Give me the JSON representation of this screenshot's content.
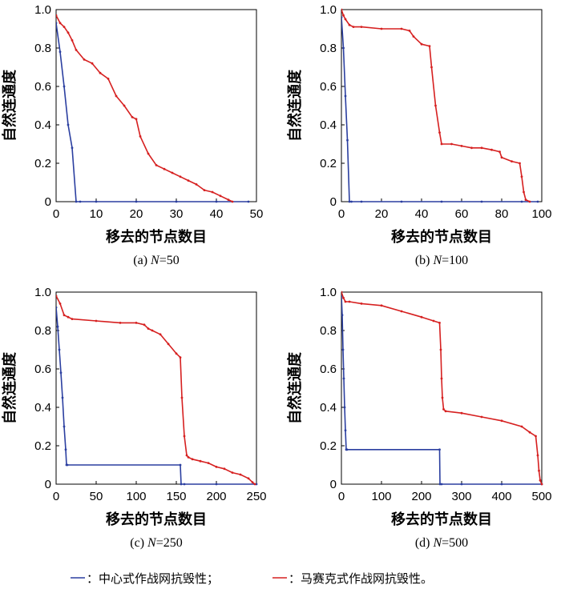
{
  "legend": {
    "centralized": {
      "label": "：中心式作战网抗毁性；",
      "color": "#2b3fa0"
    },
    "mosaic": {
      "label": "：马赛克式作战网抗毁性。",
      "color": "#d62020"
    }
  },
  "chart_data": [
    {
      "type": "line",
      "caption_prefix": "(a) ",
      "caption_var": "N",
      "caption_value": "=50",
      "xlabel": "移去的节点数目",
      "ylabel": "自然连通度",
      "xlim": [
        0,
        50
      ],
      "ylim": [
        0,
        1.0
      ],
      "xticks": [
        "0",
        "10",
        "20",
        "30",
        "40",
        "50"
      ],
      "yticks": [
        "0",
        "0.2",
        "0.4",
        "0.6",
        "0.8",
        "1.0"
      ],
      "series": [
        {
          "key": "centralized",
          "x": [
            0,
            1,
            2,
            3,
            4,
            5,
            6,
            10,
            20,
            30,
            40,
            48
          ],
          "y": [
            0.93,
            0.78,
            0.6,
            0.4,
            0.28,
            0.0,
            0.0,
            0.0,
            0.0,
            0.0,
            0.0,
            0.0
          ]
        },
        {
          "key": "mosaic",
          "x": [
            0,
            1,
            2,
            3,
            4,
            5,
            7,
            9,
            11,
            13,
            15,
            17,
            19,
            20,
            21,
            23,
            25,
            27,
            29,
            31,
            33,
            35,
            37,
            39,
            41,
            43,
            44
          ],
          "y": [
            0.97,
            0.93,
            0.91,
            0.88,
            0.84,
            0.79,
            0.74,
            0.72,
            0.67,
            0.64,
            0.55,
            0.5,
            0.44,
            0.43,
            0.34,
            0.25,
            0.19,
            0.17,
            0.15,
            0.13,
            0.11,
            0.09,
            0.06,
            0.05,
            0.03,
            0.01,
            0.0
          ]
        }
      ]
    },
    {
      "type": "line",
      "caption_prefix": "(b) ",
      "caption_var": "N",
      "caption_value": "=100",
      "xlabel": "移去的节点数目",
      "ylabel": "自然连通度",
      "xlim": [
        0,
        100
      ],
      "ylim": [
        0,
        1.0
      ],
      "xticks": [
        "0",
        "20",
        "40",
        "60",
        "80",
        "100"
      ],
      "yticks": [
        "0",
        "0.2",
        "0.4",
        "0.6",
        "0.8",
        "1.0"
      ],
      "series": [
        {
          "key": "centralized",
          "x": [
            0,
            1,
            2,
            3,
            4,
            5,
            10,
            30,
            50,
            70,
            90,
            98
          ],
          "y": [
            0.96,
            0.8,
            0.55,
            0.32,
            0.0,
            0.0,
            0.0,
            0.0,
            0.0,
            0.0,
            0.0,
            0.0
          ]
        },
        {
          "key": "mosaic",
          "x": [
            0,
            1,
            2,
            4,
            6,
            10,
            20,
            30,
            34,
            36,
            40,
            44,
            45,
            47,
            49,
            50,
            55,
            60,
            65,
            70,
            75,
            79,
            80,
            85,
            89,
            90,
            91,
            92,
            94
          ],
          "y": [
            1.0,
            0.97,
            0.95,
            0.92,
            0.91,
            0.91,
            0.9,
            0.9,
            0.89,
            0.86,
            0.82,
            0.81,
            0.7,
            0.5,
            0.36,
            0.3,
            0.3,
            0.29,
            0.28,
            0.28,
            0.27,
            0.26,
            0.23,
            0.21,
            0.2,
            0.13,
            0.05,
            0.01,
            0.0
          ]
        }
      ]
    },
    {
      "type": "line",
      "caption_prefix": "(c) ",
      "caption_var": "N",
      "caption_value": "=250",
      "xlabel": "移去的节点数目",
      "ylabel": "自然连通度",
      "xlim": [
        0,
        250
      ],
      "ylim": [
        0,
        1.0
      ],
      "xticks": [
        "0",
        "50",
        "100",
        "150",
        "200",
        "250"
      ],
      "yticks": [
        "0",
        "0.2",
        "0.4",
        "0.6",
        "0.8",
        "1.0"
      ],
      "series": [
        {
          "key": "centralized",
          "x": [
            0,
            2,
            4,
            6,
            8,
            10,
            12,
            13,
            14,
            155,
            156,
            160,
            200,
            250
          ],
          "y": [
            0.92,
            0.82,
            0.7,
            0.58,
            0.45,
            0.3,
            0.18,
            0.1,
            0.1,
            0.1,
            0.0,
            0.0,
            0.0,
            0.0
          ]
        },
        {
          "key": "mosaic",
          "x": [
            0,
            5,
            10,
            15,
            20,
            50,
            80,
            100,
            110,
            115,
            120,
            130,
            140,
            150,
            155,
            157,
            160,
            163,
            165,
            170,
            180,
            190,
            200,
            210,
            220,
            230,
            240,
            245,
            248
          ],
          "y": [
            0.98,
            0.94,
            0.88,
            0.87,
            0.86,
            0.85,
            0.84,
            0.84,
            0.83,
            0.81,
            0.8,
            0.78,
            0.73,
            0.68,
            0.66,
            0.45,
            0.25,
            0.15,
            0.14,
            0.13,
            0.12,
            0.11,
            0.09,
            0.08,
            0.06,
            0.05,
            0.03,
            0.01,
            0.0
          ]
        }
      ]
    },
    {
      "type": "line",
      "caption_prefix": "(d) ",
      "caption_var": "N",
      "caption_value": "=500",
      "xlabel": "移去的节点数目",
      "ylabel": "自然连通度",
      "xlim": [
        0,
        500
      ],
      "ylim": [
        0,
        1.0
      ],
      "xticks": [
        "0",
        "100",
        "200",
        "300",
        "400",
        "500"
      ],
      "yticks": [
        "0",
        "0.2",
        "0.4",
        "0.6",
        "0.8",
        "1.0"
      ],
      "series": [
        {
          "key": "centralized",
          "x": [
            0,
            2,
            4,
            6,
            8,
            10,
            12,
            14,
            245,
            246,
            250,
            300,
            400,
            500
          ],
          "y": [
            0.98,
            0.88,
            0.7,
            0.55,
            0.4,
            0.28,
            0.18,
            0.18,
            0.18,
            0.0,
            0.0,
            0.0,
            0.0,
            0.0
          ]
        },
        {
          "key": "mosaic",
          "x": [
            0,
            5,
            10,
            20,
            50,
            100,
            150,
            200,
            230,
            245,
            248,
            250,
            252,
            255,
            260,
            300,
            350,
            400,
            450,
            470,
            485,
            490,
            493,
            496,
            500
          ],
          "y": [
            1.0,
            0.97,
            0.95,
            0.95,
            0.94,
            0.93,
            0.9,
            0.87,
            0.85,
            0.84,
            0.7,
            0.55,
            0.45,
            0.39,
            0.38,
            0.37,
            0.35,
            0.33,
            0.3,
            0.27,
            0.25,
            0.15,
            0.07,
            0.02,
            0.0
          ]
        }
      ]
    }
  ]
}
